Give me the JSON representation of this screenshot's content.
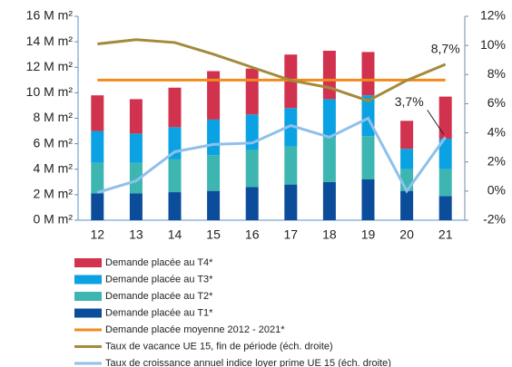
{
  "chart_data": {
    "type": "bar",
    "stacked": true,
    "categories": [
      "12",
      "13",
      "14",
      "15",
      "16",
      "17",
      "18",
      "19",
      "20",
      "21"
    ],
    "series": [
      {
        "name": "Demande placée au T1*",
        "color": "#0b4c9b",
        "type": "bar",
        "values": [
          2.1,
          2.1,
          2.2,
          2.3,
          2.6,
          2.8,
          3.0,
          3.2,
          2.3,
          1.9
        ]
      },
      {
        "name": "Demande placée au T2*",
        "color": "#3db6b1",
        "type": "bar",
        "values": [
          2.4,
          2.4,
          2.6,
          2.8,
          2.9,
          3.0,
          3.5,
          3.4,
          1.7,
          2.1
        ]
      },
      {
        "name": "Demande placée au T3*",
        "color": "#0aa2e2",
        "type": "bar",
        "values": [
          2.5,
          2.3,
          2.5,
          2.8,
          2.8,
          3.0,
          3.0,
          3.2,
          1.6,
          2.4
        ]
      },
      {
        "name": "Demande placée au T4*",
        "color": "#d1334f",
        "type": "bar",
        "values": [
          2.8,
          2.7,
          3.1,
          3.8,
          3.6,
          4.2,
          3.8,
          3.4,
          2.2,
          3.3
        ]
      },
      {
        "name": "Demande placée moyenne 2012 - 2021*",
        "color": "#f28a1c",
        "type": "line",
        "values": [
          11.0,
          11.0,
          11.0,
          11.0,
          11.0,
          11.0,
          11.0,
          11.0,
          11.0,
          11.0
        ]
      },
      {
        "name": "Taux de vacance UE 15, fin de période (éch. droite)",
        "color": "#a38b3b",
        "type": "line",
        "axis": "y2",
        "values": [
          10.1,
          10.4,
          10.2,
          9.4,
          8.5,
          7.6,
          7.1,
          6.2,
          7.6,
          8.7
        ],
        "value_labels": [
          null,
          null,
          null,
          null,
          null,
          null,
          null,
          null,
          null,
          "8,7%"
        ]
      },
      {
        "name": "Taux de croissance annuel indice loyer prime UE 15 (éch. droite)",
        "color": "#8fc0ea",
        "type": "line",
        "axis": "y2",
        "values": [
          -0.1,
          0.7,
          2.7,
          3.2,
          3.3,
          4.5,
          3.7,
          5.0,
          0.0,
          3.7
        ],
        "value_labels": [
          null,
          null,
          null,
          null,
          null,
          null,
          null,
          null,
          null,
          "3,7%"
        ]
      }
    ],
    "ylim": [
      0,
      16
    ],
    "yticks": [
      {
        "value": 0,
        "label": "0 M m²"
      },
      {
        "value": 2,
        "label": "2 M m²"
      },
      {
        "value": 4,
        "label": "4 M m²"
      },
      {
        "value": 6,
        "label": "6 M m²"
      },
      {
        "value": 8,
        "label": "8 M m²"
      },
      {
        "value": 10,
        "label": "10 M m²"
      },
      {
        "value": 12,
        "label": "12 M m²"
      },
      {
        "value": 14,
        "label": "14 M m²"
      },
      {
        "value": 16,
        "label": "16 M m²"
      }
    ],
    "y2lim": [
      -2,
      12
    ],
    "y2ticks": [
      {
        "value": -2,
        "label": "-2%"
      },
      {
        "value": 0,
        "label": "0%"
      },
      {
        "value": 2,
        "label": "2%"
      },
      {
        "value": 4,
        "label": "4%"
      },
      {
        "value": 6,
        "label": "6%"
      },
      {
        "value": 8,
        "label": "8%"
      },
      {
        "value": 10,
        "label": "10%"
      },
      {
        "value": 12,
        "label": "12%"
      }
    ],
    "legend": "bottom"
  }
}
